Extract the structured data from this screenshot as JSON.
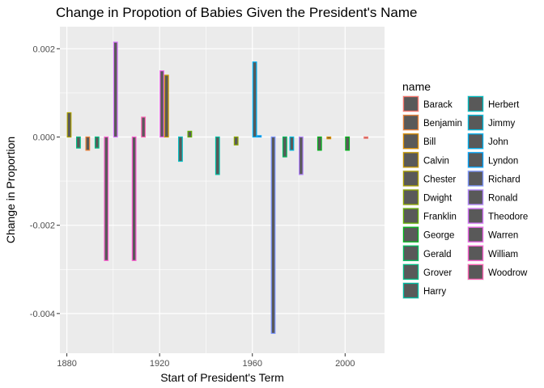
{
  "chart_data": {
    "type": "bar",
    "title": "Change in Propotion of Babies Given the President's Name",
    "xlabel": "Start of President's Term",
    "ylabel": "Change in Proportion",
    "xlim": [
      1877,
      2017
    ],
    "ylim": [
      -0.0049,
      0.0025
    ],
    "x_ticks": [
      1880,
      1920,
      1960,
      2000
    ],
    "x_tick_labels": [
      "1880",
      "1920",
      "1960",
      "2000"
    ],
    "y_ticks": [
      0.002,
      0.0,
      -0.002,
      -0.004
    ],
    "y_tick_labels": [
      "0.002",
      "0.000",
      "-0.002",
      "-0.004"
    ],
    "grid": true,
    "legend": {
      "title": "name",
      "placement": "right",
      "entries": [
        {
          "name": "Barack",
          "color": "#F8766D"
        },
        {
          "name": "Benjamin",
          "color": "#EC8239"
        },
        {
          "name": "Bill",
          "color": "#DB8E00"
        },
        {
          "name": "Calvin",
          "color": "#C79800"
        },
        {
          "name": "Chester",
          "color": "#AEA200"
        },
        {
          "name": "Dwight",
          "color": "#8FAA00"
        },
        {
          "name": "Franklin",
          "color": "#64B200"
        },
        {
          "name": "George",
          "color": "#00B81B"
        },
        {
          "name": "Gerald",
          "color": "#00BD5C"
        },
        {
          "name": "Grover",
          "color": "#00C085"
        },
        {
          "name": "Harry",
          "color": "#00C1A7"
        },
        {
          "name": "Herbert",
          "color": "#00BFC4"
        },
        {
          "name": "Jimmy",
          "color": "#00BADE"
        },
        {
          "name": "John",
          "color": "#00B2F3"
        },
        {
          "name": "Lyndon",
          "color": "#00A6FF"
        },
        {
          "name": "Richard",
          "color": "#7C96FF"
        },
        {
          "name": "Ronald",
          "color": "#B385FF"
        },
        {
          "name": "Theodore",
          "color": "#D874FD"
        },
        {
          "name": "Warren",
          "color": "#EF67EB"
        },
        {
          "name": "William",
          "color": "#FD61D3"
        },
        {
          "name": "Woodrow",
          "color": "#FF63B6"
        }
      ]
    },
    "bars": [
      {
        "name": "Chester",
        "x": 1881,
        "value": 0.00055
      },
      {
        "name": "Grover",
        "x": 1885,
        "value": -0.00025
      },
      {
        "name": "Benjamin",
        "x": 1889,
        "value": -0.0003
      },
      {
        "name": "Grover",
        "x": 1893,
        "value": -0.00025
      },
      {
        "name": "William",
        "x": 1897,
        "value": -0.0028
      },
      {
        "name": "Theodore",
        "x": 1901,
        "value": 0.00215
      },
      {
        "name": "William",
        "x": 1909,
        "value": -0.0028
      },
      {
        "name": "Woodrow",
        "x": 1913,
        "value": 0.00045
      },
      {
        "name": "Warren",
        "x": 1921,
        "value": 0.0015
      },
      {
        "name": "Calvin",
        "x": 1923,
        "value": 0.0014
      },
      {
        "name": "Herbert",
        "x": 1929,
        "value": -0.00055
      },
      {
        "name": "Franklin",
        "x": 1933,
        "value": 0.00013
      },
      {
        "name": "Harry",
        "x": 1945,
        "value": -0.00085
      },
      {
        "name": "Dwight",
        "x": 1953,
        "value": -0.00018
      },
      {
        "name": "John",
        "x": 1961,
        "value": 0.0017
      },
      {
        "name": "Lyndon",
        "x": 1963,
        "value": 3e-05
      },
      {
        "name": "Richard",
        "x": 1969,
        "value": -0.00445
      },
      {
        "name": "Gerald",
        "x": 1974,
        "value": -0.00045
      },
      {
        "name": "Jimmy",
        "x": 1977,
        "value": -0.0003
      },
      {
        "name": "Ronald",
        "x": 1981,
        "value": -0.00085
      },
      {
        "name": "George",
        "x": 1989,
        "value": -0.0003
      },
      {
        "name": "Bill",
        "x": 1993,
        "value": -4e-05
      },
      {
        "name": "George",
        "x": 2001,
        "value": -0.0003
      },
      {
        "name": "Barack",
        "x": 2009,
        "value": -3e-05
      }
    ]
  }
}
